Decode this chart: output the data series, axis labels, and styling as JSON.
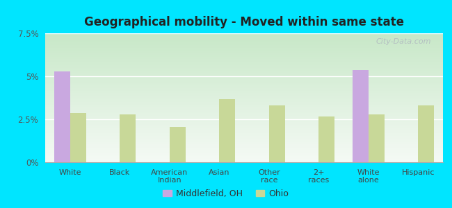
{
  "title": "Geographical mobility - Moved within same state",
  "categories": [
    "White",
    "Black",
    "American\nIndian",
    "Asian",
    "Other\nrace",
    "2+\nraces",
    "White\nalone",
    "Hispanic"
  ],
  "middlefield_values": [
    5.3,
    0,
    0,
    0,
    0,
    0,
    5.35,
    0
  ],
  "ohio_values": [
    2.85,
    2.8,
    2.05,
    3.65,
    3.3,
    2.65,
    2.8,
    3.3
  ],
  "middlefield_color": "#c9a8e0",
  "ohio_color": "#c8d898",
  "bg_top_color": "#d4edd4",
  "bg_bottom_color": "#f0f8f0",
  "outer_background": "#00e5ff",
  "ylim": [
    0,
    7.5
  ],
  "yticks": [
    0,
    2.5,
    5.0,
    7.5
  ],
  "ytick_labels": [
    "0%",
    "2.5%",
    "5%",
    "7.5%"
  ],
  "legend_middlefield": "Middlefield, OH",
  "legend_ohio": "Ohio",
  "watermark": "City-Data.com",
  "bar_width": 0.32
}
